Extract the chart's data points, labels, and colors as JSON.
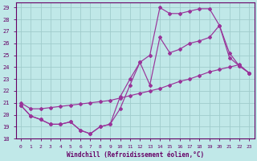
{
  "xlabel": "Windchill (Refroidissement éolien,°C)",
  "xlim": [
    0,
    23
  ],
  "ylim": [
    18,
    29
  ],
  "yticks": [
    18,
    19,
    20,
    21,
    22,
    23,
    24,
    25,
    26,
    27,
    28,
    29
  ],
  "xticks": [
    0,
    1,
    2,
    3,
    4,
    5,
    6,
    7,
    8,
    9,
    10,
    11,
    12,
    13,
    14,
    15,
    16,
    17,
    18,
    19,
    20,
    21,
    22,
    23
  ],
  "bg_color": "#c0e8e8",
  "line_color": "#993399",
  "grid_color": "#a0cccc",
  "line1_x": [
    0,
    1,
    2,
    3,
    4,
    5,
    6,
    7,
    8,
    9,
    10,
    11,
    12,
    13,
    14,
    15,
    16,
    17,
    18,
    19,
    20,
    21,
    22,
    23
  ],
  "line1_y": [
    20.8,
    19.9,
    19.6,
    19.2,
    19.2,
    19.4,
    18.7,
    18.4,
    19.0,
    19.2,
    21.5,
    23.0,
    24.4,
    25.0,
    29.0,
    28.5,
    28.5,
    28.7,
    28.9,
    28.9,
    27.5,
    24.8,
    24.1,
    23.5
  ],
  "line2_x": [
    0,
    1,
    2,
    3,
    4,
    5,
    6,
    7,
    8,
    9,
    10,
    11,
    12,
    13,
    14,
    15,
    16,
    17,
    18,
    19,
    20,
    21,
    22,
    23
  ],
  "line2_y": [
    20.8,
    19.9,
    19.6,
    19.2,
    19.2,
    19.4,
    18.7,
    18.4,
    19.0,
    19.2,
    20.5,
    22.5,
    24.4,
    22.5,
    26.5,
    25.2,
    25.5,
    26.0,
    26.2,
    26.5,
    27.5,
    25.2,
    24.1,
    23.5
  ],
  "line3_x": [
    0,
    1,
    2,
    3,
    4,
    5,
    6,
    7,
    8,
    9,
    10,
    11,
    12,
    13,
    14,
    15,
    16,
    17,
    18,
    19,
    20,
    21,
    22,
    23
  ],
  "line3_y": [
    21.0,
    20.5,
    20.5,
    20.6,
    20.7,
    20.8,
    20.9,
    21.0,
    21.1,
    21.2,
    21.4,
    21.6,
    21.8,
    22.0,
    22.2,
    22.5,
    22.8,
    23.0,
    23.3,
    23.6,
    23.8,
    24.0,
    24.2,
    23.5
  ]
}
